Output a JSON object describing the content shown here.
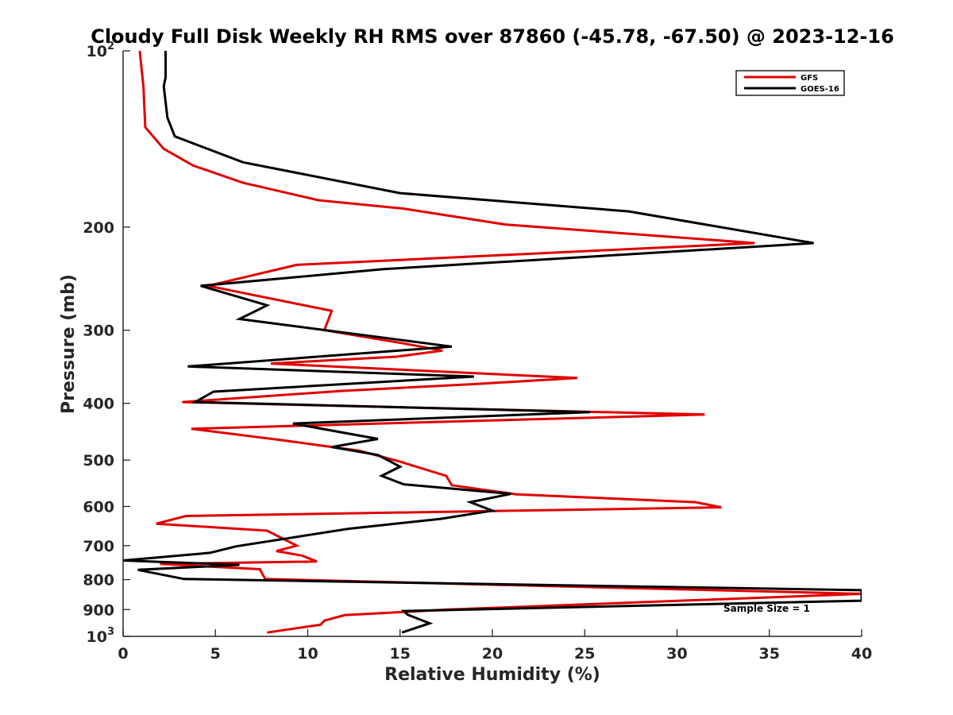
{
  "chart_data": {
    "type": "line",
    "title": "Cloudy Full Disk Weekly RH RMS over 87860 (-45.78, -67.50) @ 2023-12-16",
    "xlabel": "Relative Humidity (%)",
    "ylabel": "Pressure (mb)",
    "xlim": [
      0,
      40
    ],
    "ylim": [
      100,
      1000
    ],
    "y_scale": "log",
    "y_reversed": true,
    "x_ticks": [
      0,
      5,
      10,
      15,
      20,
      25,
      30,
      35,
      40
    ],
    "x_tick_labels": [
      "0",
      "5",
      "10",
      "15",
      "20",
      "25",
      "30",
      "35",
      "40"
    ],
    "y_ticks": [
      100,
      200,
      300,
      400,
      500,
      600,
      700,
      800,
      900,
      1000
    ],
    "y_tick_labels": [
      {
        "base": "10",
        "exp": "2"
      },
      {
        "base": "200",
        "exp": ""
      },
      {
        "base": "300",
        "exp": ""
      },
      {
        "base": "400",
        "exp": ""
      },
      {
        "base": "500",
        "exp": ""
      },
      {
        "base": "600",
        "exp": ""
      },
      {
        "base": "700",
        "exp": ""
      },
      {
        "base": "800",
        "exp": ""
      },
      {
        "base": "900",
        "exp": ""
      },
      {
        "base": "10",
        "exp": "3"
      }
    ],
    "legend_position": "top-right",
    "grid": false,
    "annotation": "Sample Size = 1",
    "series": [
      {
        "name": "GFS",
        "color": "#e00000",
        "points": [
          [
            0.9,
            100
          ],
          [
            1.1,
            115
          ],
          [
            1.2,
            135
          ],
          [
            2.2,
            147
          ],
          [
            3.8,
            157
          ],
          [
            6.5,
            168
          ],
          [
            10.6,
            180
          ],
          [
            15.2,
            186
          ],
          [
            20.7,
            198
          ],
          [
            34.2,
            213
          ],
          [
            9.4,
            232
          ],
          [
            4.6,
            252
          ],
          [
            11.3,
            278
          ],
          [
            10.9,
            300
          ],
          [
            15.2,
            316
          ],
          [
            17.3,
            325
          ],
          [
            14.8,
            333
          ],
          [
            8.0,
            342
          ],
          [
            24.6,
            362
          ],
          [
            18.9,
            371
          ],
          [
            11.8,
            381
          ],
          [
            3.2,
            398
          ],
          [
            31.5,
            418
          ],
          [
            3.7,
            442
          ],
          [
            8.5,
            462
          ],
          [
            12.8,
            482
          ],
          [
            15.0,
            503
          ],
          [
            17.5,
            532
          ],
          [
            17.8,
            552
          ],
          [
            21.3,
            572
          ],
          [
            31.0,
            590
          ],
          [
            32.4,
            602
          ],
          [
            3.4,
            623
          ],
          [
            1.8,
            642
          ],
          [
            7.8,
            660
          ],
          [
            9.4,
            700
          ],
          [
            8.3,
            715
          ],
          [
            9.7,
            728
          ],
          [
            10.5,
            745
          ],
          [
            2.0,
            752
          ],
          [
            7.4,
            768
          ],
          [
            7.7,
            798
          ],
          [
            40.0,
            846
          ],
          [
            17.6,
            900
          ],
          [
            12.0,
            920
          ],
          [
            10.9,
            940
          ],
          [
            10.7,
            955
          ],
          [
            7.8,
            985
          ]
        ]
      },
      {
        "name": "GOES-16",
        "color": "#000000",
        "points": [
          [
            2.3,
            100
          ],
          [
            2.3,
            111
          ],
          [
            2.2,
            115
          ],
          [
            2.4,
            130
          ],
          [
            2.8,
            140
          ],
          [
            6.5,
            155
          ],
          [
            15.0,
            175
          ],
          [
            27.4,
            188
          ],
          [
            37.4,
            213
          ],
          [
            14.1,
            236
          ],
          [
            4.2,
            252
          ],
          [
            7.8,
            272
          ],
          [
            6.3,
            287
          ],
          [
            17.8,
            320
          ],
          [
            3.5,
            346
          ],
          [
            19.0,
            360
          ],
          [
            4.9,
            382
          ],
          [
            3.9,
            398
          ],
          [
            25.3,
            414
          ],
          [
            9.2,
            433
          ],
          [
            13.8,
            460
          ],
          [
            11.3,
            475
          ],
          [
            13.8,
            490
          ],
          [
            15.0,
            513
          ],
          [
            14.0,
            532
          ],
          [
            15.2,
            550
          ],
          [
            21.0,
            571
          ],
          [
            18.8,
            590
          ],
          [
            20.0,
            610
          ],
          [
            17.2,
            630
          ],
          [
            12.2,
            655
          ],
          [
            6.1,
            702
          ],
          [
            4.7,
            720
          ],
          [
            0.0,
            742
          ],
          [
            6.3,
            755
          ],
          [
            0.8,
            770
          ],
          [
            3.3,
            798
          ],
          [
            40.0,
            834
          ],
          [
            40.0,
            851
          ],
          [
            40.0,
            869
          ],
          [
            15.2,
            905
          ],
          [
            15.4,
            918
          ],
          [
            16.6,
            950
          ],
          [
            15.1,
            985
          ]
        ]
      }
    ]
  }
}
